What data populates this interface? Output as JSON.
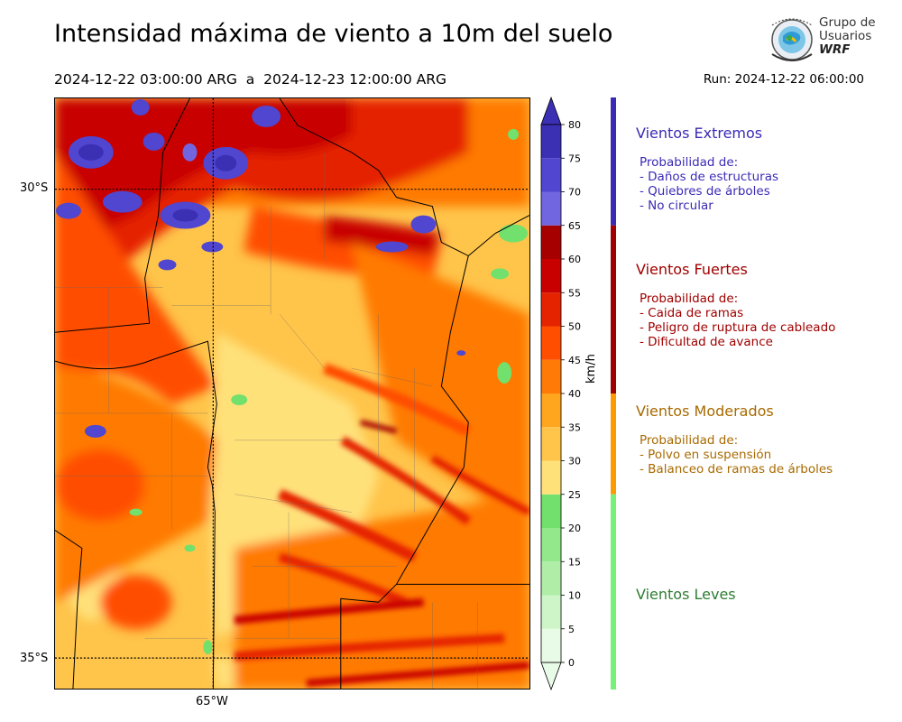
{
  "title": "Intensidad máxima de viento a 10m del suelo",
  "period": "2024-12-22 03:00:00 ARG  a  2024-12-23 12:00:00 ARG",
  "run": "Run: 2024-12-22 06:00:00",
  "logo": {
    "line1": "Grupo de",
    "line2": "Usuarios",
    "line3": "WRF"
  },
  "map": {
    "lat_labels": [
      "30°S",
      "35°S"
    ],
    "lon_labels": [
      "65°W"
    ]
  },
  "colorbar": {
    "unit": "km/h",
    "ticks": [
      "0",
      "5",
      "10",
      "15",
      "20",
      "25",
      "30",
      "35",
      "40",
      "45",
      "50",
      "55",
      "60",
      "65",
      "70",
      "75",
      "80"
    ],
    "colors": [
      "#e8fbe6",
      "#cdf5c8",
      "#b0eea8",
      "#92e88a",
      "#72e06c",
      "#ffe17a",
      "#ffc44a",
      "#ffa51e",
      "#ff7a06",
      "#ff4e00",
      "#e52300",
      "#c80000",
      "#a60000",
      "#7265e0",
      "#5046cf",
      "#3b2fb3"
    ]
  },
  "categories": [
    {
      "key": "extremos",
      "title": "Vientos Extremos",
      "color": "#3a2ab5",
      "desc": "Probabilidad de:\n- Daños de estructuras\n- Quiebres de árboles\n- No circular"
    },
    {
      "key": "fuertes",
      "title": "Vientos Fuertes",
      "color": "#a00000",
      "desc": "Probabilidad de:\n- Caida de ramas\n- Peligro de ruptura de cableado\n- Dificultad de avance"
    },
    {
      "key": "moderados",
      "title": "Vientos Moderados",
      "color": "#a86a00",
      "desc": "Probabilidad de:\n- Polvo en suspensión\n- Balanceo de ramas de árboles"
    },
    {
      "key": "leves",
      "title": "Vientos Leves",
      "color": "#2e7d32",
      "desc": ""
    }
  ]
}
